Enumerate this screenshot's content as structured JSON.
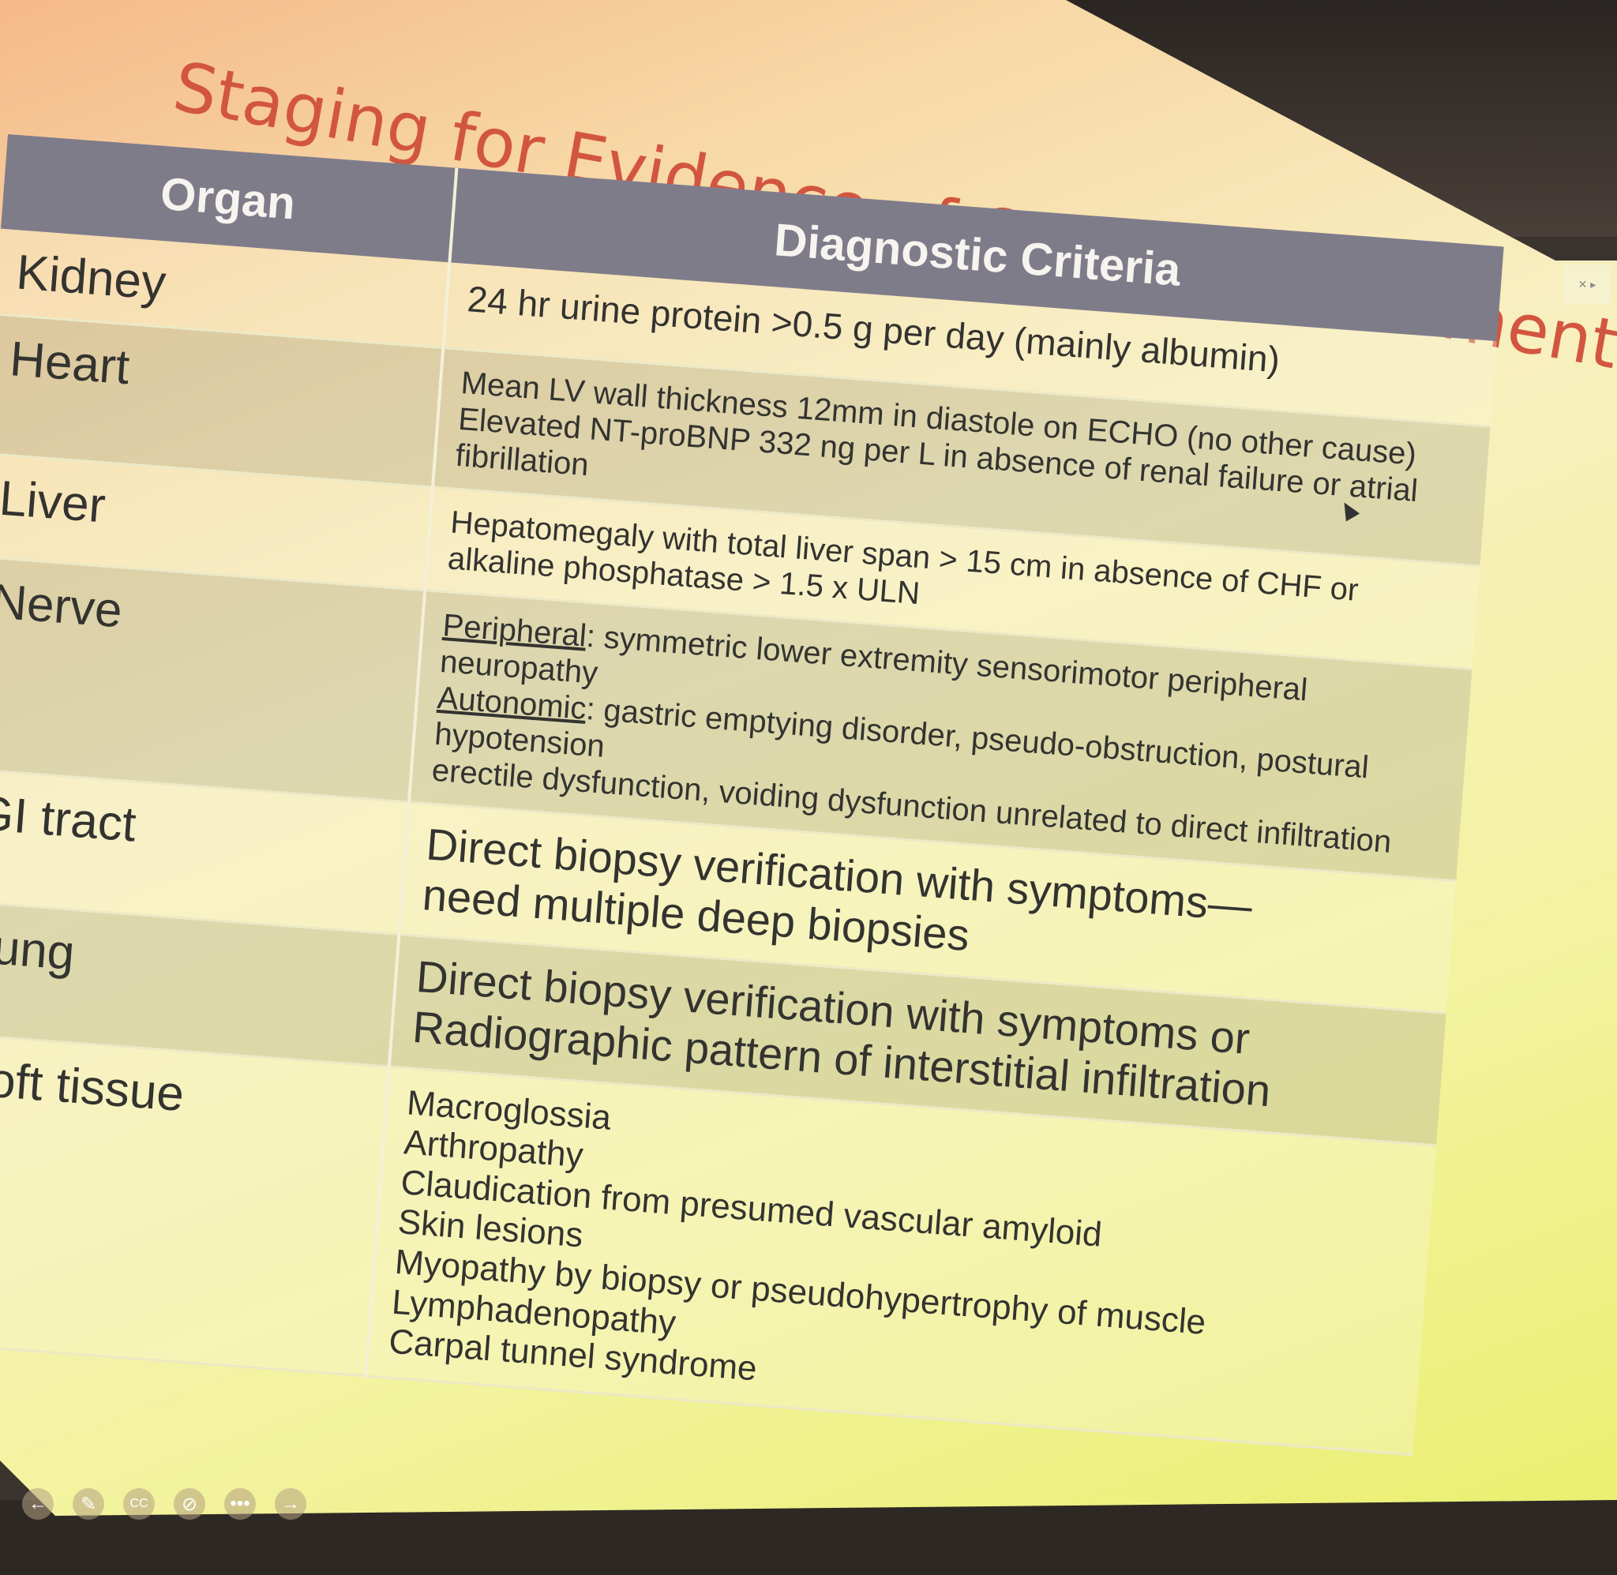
{
  "slide": {
    "title": "Staging for Evidence of Organ Involvement in AL",
    "headers": {
      "organ": "Organ",
      "criteria": "Diagnostic Criteria"
    },
    "rows": [
      {
        "organ": "Kidney",
        "criteria": [
          "24 hr urine protein >0.5 g per day (mainly albumin)"
        ]
      },
      {
        "organ": "Heart",
        "criteria": [
          "Mean LV wall thickness   12mm in diastole on ECHO (no other cause)",
          "Elevated NT-proBNP   332 ng per L in absence of renal failure or atrial fibrillation"
        ]
      },
      {
        "organ": "Liver",
        "criteria": [
          "Hepatomegaly with total liver span > 15 cm in absence of CHF or",
          "alkaline phosphatase > 1.5 x ULN"
        ]
      },
      {
        "organ": "Nerve",
        "criteria_nerve": {
          "peripheral_label": "Peripheral",
          "peripheral_text": ": symmetric lower extremity sensorimotor peripheral neuropathy",
          "autonomic_label": "Autonomic",
          "autonomic_text": ": gastric emptying disorder, pseudo-obstruction, postural hypotension",
          "autonomic_text2": "erectile dysfunction, voiding dysfunction unrelated to direct infiltration"
        }
      },
      {
        "organ": "GI tract",
        "criteria": [
          "Direct biopsy verification with symptoms—",
          "need multiple deep biopsies"
        ]
      },
      {
        "organ": "Lung",
        "criteria": [
          "Direct biopsy verification with symptoms or",
          "Radiographic pattern of interstitial infiltration"
        ]
      },
      {
        "organ": "Soft tissue",
        "criteria": [
          "Macroglossia",
          "Arthropathy",
          "Claudication from presumed vascular amyloid",
          "Skin lesions",
          "Myopathy by biopsy or pseudohypertrophy of muscle",
          "Lymphadenopathy",
          "Carpal tunnel syndrome"
        ]
      }
    ]
  },
  "toolbar": {
    "icons": [
      "back-arrow-icon",
      "pen-icon",
      "captions-icon",
      "camera-off-icon",
      "more-icon",
      "forward-arrow-icon"
    ],
    "cc_label": "CC"
  }
}
